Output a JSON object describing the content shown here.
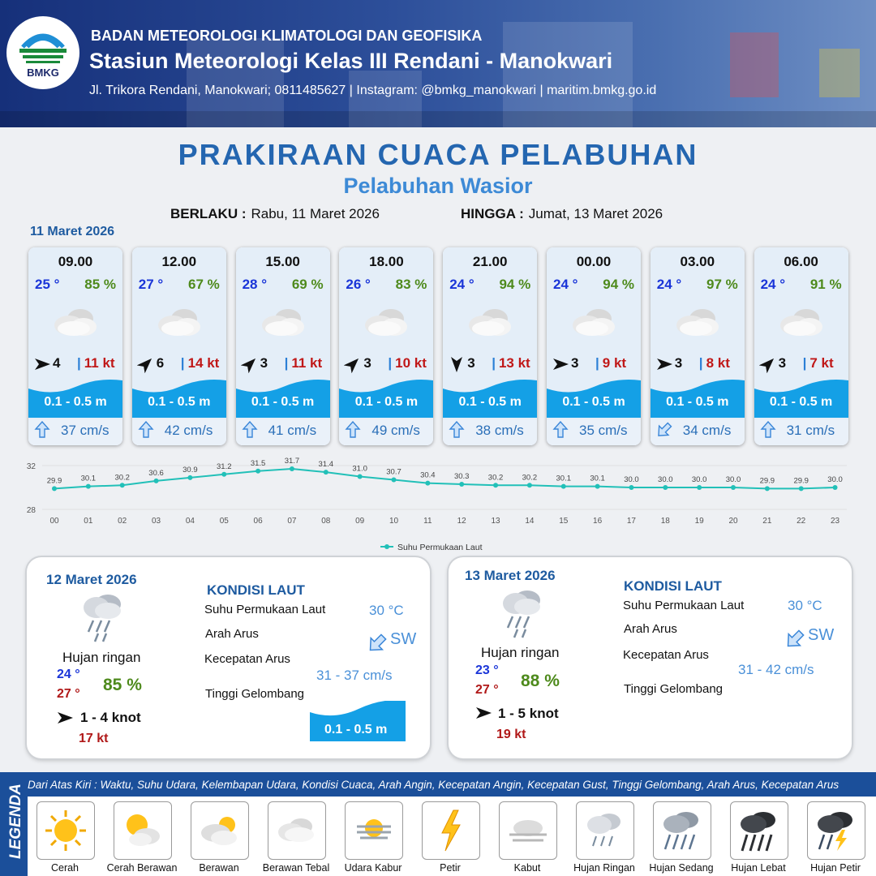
{
  "header": {
    "logo_text": "BMKG",
    "agency": "BADAN METEOROLOGI KLIMATOLOGI DAN GEOFISIKA",
    "station": "Stasiun Meteorologi Kelas III Rendani - Manokwari",
    "contact": "Jl. Trikora Rendani, Manokwari; 0811485627 | Instagram: @bmkg_manokwari | maritim.bmkg.go.id"
  },
  "title": "PRAKIRAAN CUACA PELABUHAN",
  "subtitle": "Pelabuhan Wasior",
  "validity": {
    "from_label": "BERLAKU :",
    "from_value": "Rabu, 11 Maret 2026",
    "to_label": "HINGGA :",
    "to_value": "Jumat, 13 Maret 2026"
  },
  "day1": {
    "date": "11 Maret 2026",
    "slots": [
      {
        "time": "09.00",
        "temp": "25 °",
        "rh": "85 %",
        "wind_deg": 90,
        "wind": "4",
        "gust": "11 kt",
        "wave": "0.1 - 0.5 m",
        "cur_deg": 180,
        "cur": "37 cm/s",
        "icon": "berawan-tebal-icon"
      },
      {
        "time": "12.00",
        "temp": "27 °",
        "rh": "67 %",
        "wind_deg": 45,
        "wind": "6",
        "gust": "14 kt",
        "wave": "0.1 - 0.5 m",
        "cur_deg": 180,
        "cur": "42 cm/s",
        "icon": "berawan-tebal-icon"
      },
      {
        "time": "15.00",
        "temp": "28 °",
        "rh": "69 %",
        "wind_deg": 45,
        "wind": "3",
        "gust": "11 kt",
        "wave": "0.1 - 0.5 m",
        "cur_deg": 180,
        "cur": "41 cm/s",
        "icon": "berawan-tebal-icon"
      },
      {
        "time": "18.00",
        "temp": "26 °",
        "rh": "83 %",
        "wind_deg": 45,
        "wind": "3",
        "gust": "10 kt",
        "wave": "0.1 - 0.5 m",
        "cur_deg": 180,
        "cur": "49 cm/s",
        "icon": "berawan-tebal-icon"
      },
      {
        "time": "21.00",
        "temp": "24 °",
        "rh": "94 %",
        "wind_deg": 180,
        "wind": "3",
        "gust": "13 kt",
        "wave": "0.1 - 0.5 m",
        "cur_deg": 180,
        "cur": "38 cm/s",
        "icon": "berawan-tebal-icon"
      },
      {
        "time": "00.00",
        "temp": "24 °",
        "rh": "94 %",
        "wind_deg": 90,
        "wind": "3",
        "gust": "9 kt",
        "wave": "0.1 - 0.5 m",
        "cur_deg": 180,
        "cur": "35 cm/s",
        "icon": "berawan-tebal-icon"
      },
      {
        "time": "03.00",
        "temp": "24 °",
        "rh": "97 %",
        "wind_deg": 90,
        "wind": "3",
        "gust": "8 kt",
        "wave": "0.1 - 0.5 m",
        "cur_deg": 45,
        "cur": "34 cm/s",
        "icon": "berawan-tebal-icon"
      },
      {
        "time": "06.00",
        "temp": "24 °",
        "rh": "91 %",
        "wind_deg": 45,
        "wind": "3",
        "gust": "7 kt",
        "wave": "0.1 - 0.5 m",
        "cur_deg": 180,
        "cur": "31 cm/s",
        "icon": "berawan-tebal-icon"
      }
    ]
  },
  "chart_data": {
    "type": "line",
    "x": [
      "00",
      "01",
      "02",
      "03",
      "04",
      "05",
      "06",
      "07",
      "08",
      "09",
      "10",
      "11",
      "12",
      "13",
      "14",
      "15",
      "16",
      "17",
      "18",
      "19",
      "20",
      "21",
      "22",
      "23"
    ],
    "series": [
      {
        "name": "Suhu Permukaan Laut",
        "values": [
          29.9,
          30.1,
          30.2,
          30.6,
          30.9,
          31.2,
          31.5,
          31.7,
          31.4,
          31.0,
          30.7,
          30.4,
          30.3,
          30.2,
          30.2,
          30.1,
          30.1,
          30.0,
          30.0,
          30.0,
          30.0,
          29.9,
          29.9,
          30.0
        ]
      }
    ],
    "ylim": [
      28,
      32
    ],
    "yticks": [
      "32",
      "28"
    ],
    "color": "#22c0b8",
    "legend_position": "bottom"
  },
  "day2": {
    "date": "12 Maret 2026",
    "condition": "Hujan ringan",
    "tmin": "24 °",
    "tmax": "27 °",
    "rh": "85 %",
    "wind": "1  - 4 knot",
    "gust": "17 kt",
    "wind_deg": 90,
    "kondisi_title": "KONDISI LAUT",
    "sst_label": "Suhu Permukaan Laut",
    "sst": "30 °C",
    "dir_label": "Arah Arus",
    "dir": "SW",
    "cur_deg": 225,
    "speed_label": "Kecepatan Arus",
    "speed": "31  - 37 cm/s",
    "wave_label": "Tinggi Gelombang",
    "wave": "0.1 - 0.5 m"
  },
  "day3": {
    "date": "13 Maret 2026",
    "condition": "Hujan ringan",
    "tmin": "23 °",
    "tmax": "27 °",
    "rh": "88 %",
    "wind": "1  - 5 knot",
    "gust": "19 kt",
    "wind_deg": 90,
    "kondisi_title": "KONDISI LAUT",
    "sst_label": "Suhu Permukaan Laut",
    "sst": "30 °C",
    "dir_label": "Arah Arus",
    "dir": "SW",
    "cur_deg": 225,
    "speed_label": "Kecepatan Arus",
    "speed": "31  - 42 cm/s",
    "wave_label": "Tinggi Gelombang"
  },
  "legend": {
    "title": "LEGENDA",
    "description": "Dari Atas Kiri : Waktu, Suhu Udara, Kelembapan Udara, Kondisi Cuaca, Arah Angin, Kecepatan Angin, Kecepatan Gust, Tinggi Gelombang, Arah Arus, Kecepatan Arus",
    "items": [
      {
        "label": "Cerah",
        "icon": "sun-icon"
      },
      {
        "label": "Cerah Berawan",
        "icon": "sun-cloud-icon"
      },
      {
        "label": "Berawan",
        "icon": "cloud-sun-icon"
      },
      {
        "label": "Berawan Tebal",
        "icon": "cloud-icon"
      },
      {
        "label": "Udara Kabur",
        "icon": "haze-icon"
      },
      {
        "label": "Petir",
        "icon": "lightning-icon"
      },
      {
        "label": "Kabut",
        "icon": "fog-icon"
      },
      {
        "label": "Hujan Ringan",
        "icon": "light-rain-icon"
      },
      {
        "label": "Hujan Sedang",
        "icon": "moderate-rain-icon"
      },
      {
        "label": "Hujan Lebat",
        "icon": "heavy-rain-icon"
      },
      {
        "label": "Hujan Petir",
        "icon": "thunderstorm-icon"
      }
    ]
  }
}
